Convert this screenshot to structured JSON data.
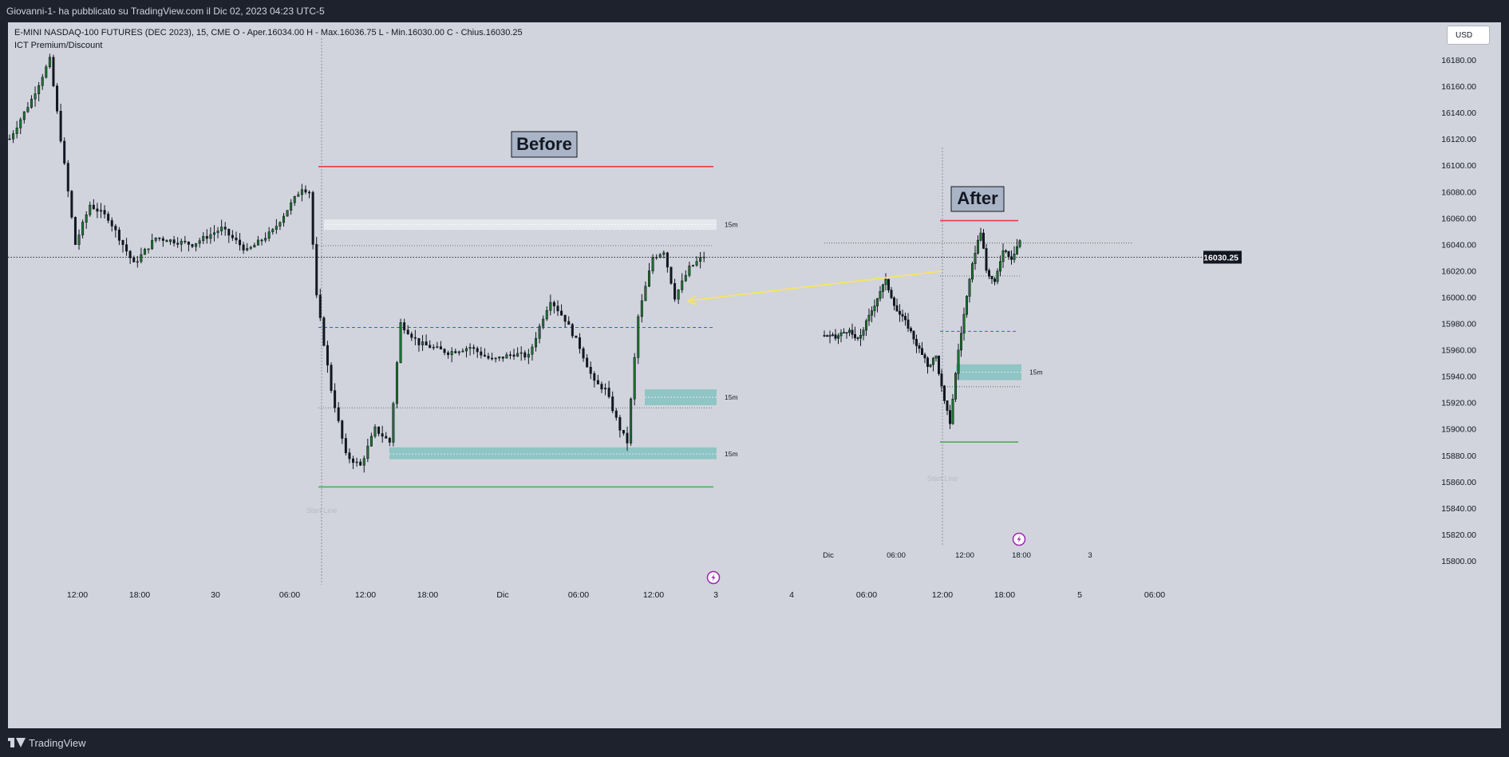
{
  "header": {
    "publish_info": "Giovanni-1- ha pubblicato su TradingView.com il Dic 02, 2023 04:23 UTC-5"
  },
  "legend": {
    "line1": "E-MINI NASDAQ-100 FUTURES (DEC 2023), 15, CME  O - Aper.16034.00  H - Max.16036.75  L - Min.16030.00  C - Chius.16030.25",
    "line2": "ICT Premium/Discount"
  },
  "currency_button": "USD",
  "footer": {
    "brand": "TradingView"
  },
  "colors": {
    "background": "#d1d4dc",
    "candle": "#1e7a2e",
    "premium_line": "#f23645",
    "discount_line": "#4caf50",
    "equilibrium_line": "#2962ff",
    "fvg_fill": "#4db6ac",
    "arrow": "#f7e463",
    "badge_fill": "#a9b4c7",
    "lightning": "#9c27b0"
  },
  "chart_data": [
    {
      "type": "candlestick",
      "panel": "main",
      "symbol": "E-MINI NASDAQ-100 FUTURES (DEC 2023), 15, CME",
      "x_ticks": [
        "12:00",
        "18:00",
        "30",
        "06:00",
        "12:00",
        "18:00",
        "Dic",
        "06:00",
        "12:00",
        "3",
        "4",
        "06:00",
        "12:00",
        "18:00",
        "5",
        "06:00"
      ],
      "y_ticks": [
        "16180.00",
        "16160.00",
        "16140.00",
        "16120.00",
        "16100.00",
        "16080.00",
        "16060.00",
        "16040.00",
        "16020.00",
        "16000.00",
        "15980.00",
        "15960.00",
        "15940.00",
        "15920.00",
        "15900.00",
        "15880.00",
        "15860.00",
        "15840.00",
        "15820.00",
        "15800.00"
      ],
      "ylim": [
        15795,
        16195
      ],
      "last_price_label": "16030.25",
      "last_price": 16030.25,
      "label_before": "Before",
      "zone_labels": [
        "15m",
        "15m",
        "15m"
      ],
      "start_line_label": "Start Line",
      "levels": {
        "premium": 16099,
        "discount": 15856,
        "equilibrium": 15977
      },
      "fvg_zones": [
        {
          "top": 16059,
          "bottom": 16051,
          "mid": 16055,
          "label_index": 0
        },
        {
          "top": 15930,
          "bottom": 15918,
          "mid": 15924,
          "label_index": 1
        },
        {
          "top": 15886,
          "bottom": 15877,
          "mid": 15881,
          "label_index": 2
        }
      ],
      "dotted_levels": [
        16039,
        15916
      ],
      "key_points": [
        {
          "t": 0,
          "p": 16120
        },
        {
          "t": 6,
          "p": 16150
        },
        {
          "t": 11,
          "p": 16180
        },
        {
          "t": 14,
          "p": 16120
        },
        {
          "t": 18,
          "p": 16040
        },
        {
          "t": 22,
          "p": 16070
        },
        {
          "t": 27,
          "p": 16060
        },
        {
          "t": 34,
          "p": 16025
        },
        {
          "t": 40,
          "p": 16045
        },
        {
          "t": 50,
          "p": 16040
        },
        {
          "t": 58,
          "p": 16052
        },
        {
          "t": 65,
          "p": 16035
        },
        {
          "t": 72,
          "p": 16050
        },
        {
          "t": 80,
          "p": 16083
        },
        {
          "t": 82,
          "p": 16080
        },
        {
          "t": 84,
          "p": 16000
        },
        {
          "t": 88,
          "p": 15930
        },
        {
          "t": 92,
          "p": 15880
        },
        {
          "t": 96,
          "p": 15872
        },
        {
          "t": 100,
          "p": 15900
        },
        {
          "t": 104,
          "p": 15890
        },
        {
          "t": 107,
          "p": 15980
        },
        {
          "t": 112,
          "p": 15965
        },
        {
          "t": 120,
          "p": 15958
        },
        {
          "t": 126,
          "p": 15962
        },
        {
          "t": 132,
          "p": 15952
        },
        {
          "t": 138,
          "p": 15957
        },
        {
          "t": 142,
          "p": 15955
        },
        {
          "t": 146,
          "p": 15985
        },
        {
          "t": 148,
          "p": 15998
        },
        {
          "t": 152,
          "p": 15983
        },
        {
          "t": 156,
          "p": 15962
        },
        {
          "t": 160,
          "p": 15935
        },
        {
          "t": 163,
          "p": 15930
        },
        {
          "t": 167,
          "p": 15900
        },
        {
          "t": 169,
          "p": 15890
        },
        {
          "t": 172,
          "p": 15985
        },
        {
          "t": 176,
          "p": 16030
        },
        {
          "t": 179,
          "p": 16035
        },
        {
          "t": 182,
          "p": 16000
        },
        {
          "t": 186,
          "p": 16022
        },
        {
          "t": 190,
          "p": 16031
        }
      ]
    },
    {
      "type": "candlestick",
      "panel": "inset",
      "x_ticks": [
        "Dic",
        "06:00",
        "12:00",
        "18:00",
        "3",
        "4"
      ],
      "label_after": "After",
      "zone_labels": [
        "15m"
      ],
      "start_line_label": "Start Line",
      "levels": {
        "premium": 16058,
        "discount": 15890,
        "equilibrium": 15974
      },
      "fvg_zones": [
        {
          "top": 15949,
          "bottom": 15937,
          "mid": 15943,
          "label_index": 0
        }
      ],
      "dotted_levels": [
        16041,
        16016,
        15932
      ],
      "key_points": [
        {
          "t": 0,
          "p": 15971
        },
        {
          "t": 4,
          "p": 15969
        },
        {
          "t": 8,
          "p": 15975
        },
        {
          "t": 12,
          "p": 15967
        },
        {
          "t": 16,
          "p": 15985
        },
        {
          "t": 20,
          "p": 16005
        },
        {
          "t": 22,
          "p": 16012
        },
        {
          "t": 26,
          "p": 15990
        },
        {
          "t": 30,
          "p": 15978
        },
        {
          "t": 34,
          "p": 15960
        },
        {
          "t": 37,
          "p": 15948
        },
        {
          "t": 40,
          "p": 15955
        },
        {
          "t": 43,
          "p": 15920
        },
        {
          "t": 45,
          "p": 15905
        },
        {
          "t": 48,
          "p": 15960
        },
        {
          "t": 51,
          "p": 16000
        },
        {
          "t": 54,
          "p": 16035
        },
        {
          "t": 56,
          "p": 16050
        },
        {
          "t": 58,
          "p": 16020
        },
        {
          "t": 61,
          "p": 16010
        },
        {
          "t": 64,
          "p": 16037
        },
        {
          "t": 67,
          "p": 16030
        },
        {
          "t": 70,
          "p": 16043
        }
      ]
    }
  ]
}
